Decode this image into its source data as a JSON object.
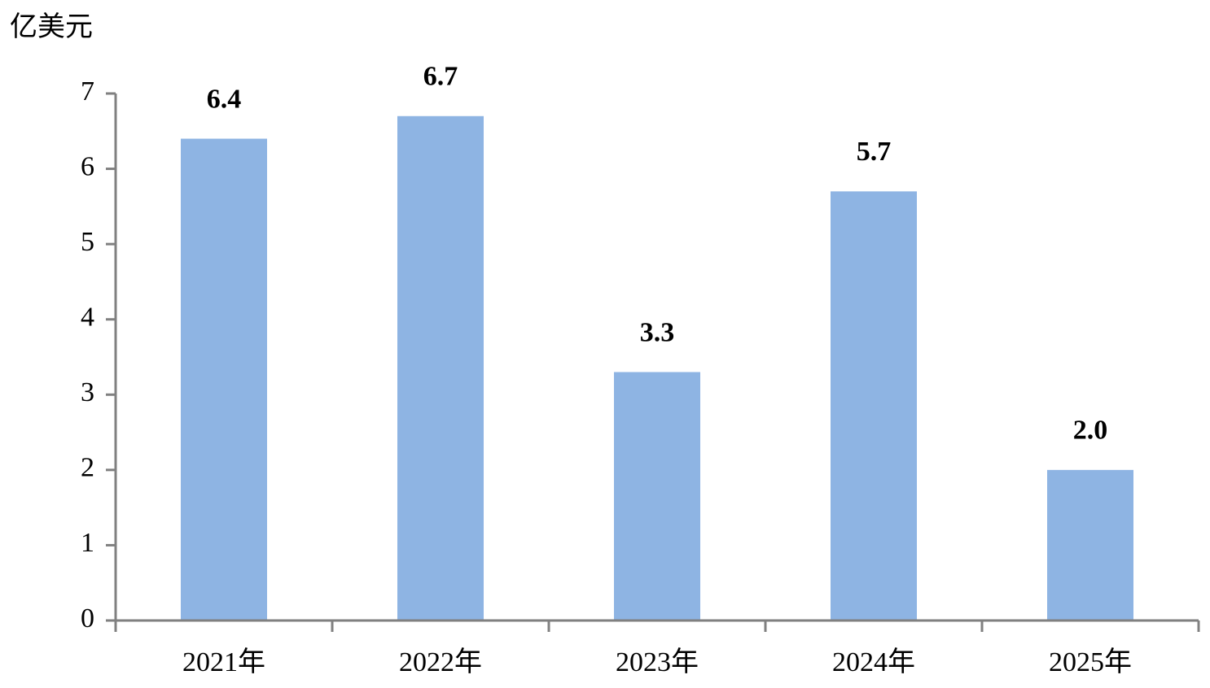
{
  "chart_data": {
    "type": "bar",
    "y_label": "亿美元",
    "categories": [
      "2021年",
      "2022年",
      "2023年",
      "2024年",
      "2025年"
    ],
    "values": [
      6.4,
      6.7,
      3.3,
      5.7,
      2.0
    ],
    "value_labels": [
      "6.4",
      "6.7",
      "3.3",
      "5.7",
      "2.0"
    ],
    "color": "#8eb4e3",
    "ylim": [
      0,
      7
    ],
    "yticks": [
      0,
      1,
      2,
      3,
      4,
      5,
      6,
      7
    ],
    "grid": false
  }
}
